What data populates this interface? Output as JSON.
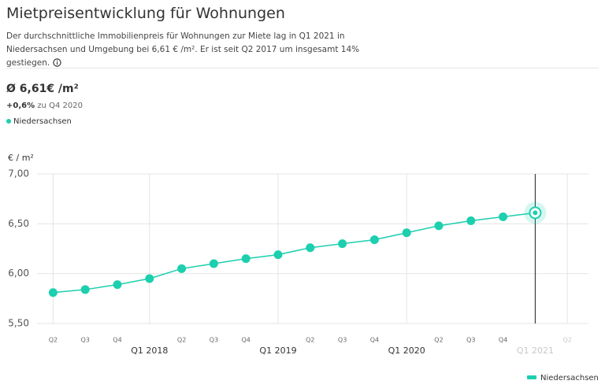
{
  "chart_data": {
    "type": "line",
    "title": "Mietpreisentwicklung für Wohnungen",
    "subtitle": "Der durchschnittliche Immobilienpreis für Wohnungen zur Miete lag in Q1 2021 in Niedersachsen und Umgebung bei 6,61 € /m². Er ist seit Q2 2017 um insgesamt 14% gestiegen.",
    "headline": "Ø 6,61€ /m²",
    "change": "+0,6%",
    "change_note": "zu Q4 2020",
    "y_label": "€ / m²",
    "categories": [
      "Q2",
      "Q3",
      "Q4",
      "Q1 2018",
      "Q2",
      "Q3",
      "Q4",
      "Q1 2019",
      "Q2",
      "Q3",
      "Q4",
      "Q1 2020",
      "Q2",
      "Q3",
      "Q4",
      "Q1 2021",
      "Q2"
    ],
    "series": [
      {
        "name": "Niedersachsen",
        "color": "#1ccfae",
        "values": [
          5.81,
          5.84,
          5.89,
          5.95,
          6.05,
          6.1,
          6.15,
          6.19,
          6.26,
          6.3,
          6.34,
          6.41,
          6.48,
          6.53,
          6.57,
          6.61,
          null
        ]
      }
    ],
    "ylim": [
      5.5,
      7.0
    ],
    "yticks": [
      {
        "value": 5.5,
        "label": "5,50"
      },
      {
        "value": 6.0,
        "label": "6,00"
      },
      {
        "value": 6.5,
        "label": "6,50"
      },
      {
        "value": 7.0,
        "label": "7,00"
      }
    ],
    "grid": true
  }
}
